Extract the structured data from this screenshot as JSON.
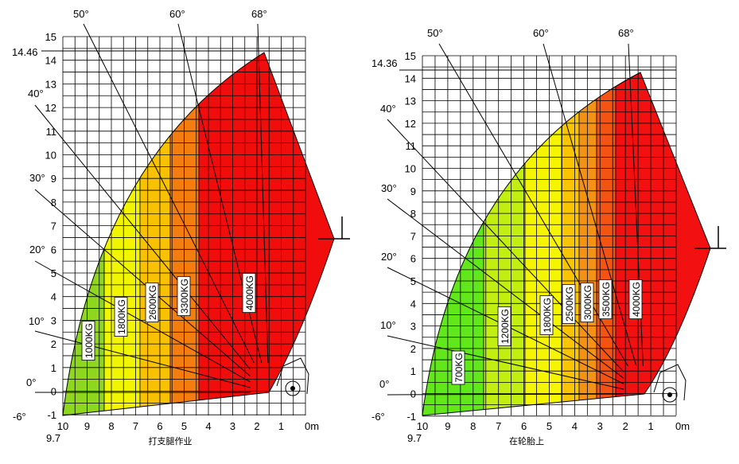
{
  "chart_data": [
    {
      "type": "diagram",
      "title": "打支腿作业",
      "x_axis": {
        "ticks": [
          "10",
          "9",
          "8",
          "7",
          "6",
          "5",
          "4",
          "3",
          "2",
          "1",
          "0m"
        ],
        "extra_label": "9.7",
        "range": [
          10,
          0
        ]
      },
      "y_axis": {
        "ticks": [
          "-1",
          "0",
          "1",
          "2",
          "3",
          "4",
          "5",
          "6",
          "7",
          "8",
          "9",
          "10",
          "11",
          "12",
          "13",
          "14",
          "15"
        ],
        "extra_labels": [
          "14.46",
          "-6°"
        ],
        "range": [
          -1,
          15
        ]
      },
      "max_height_m": 14.46,
      "max_reach_m": 9.7,
      "boom_angles": [
        "50°",
        "60°",
        "68°",
        "40°",
        "30°",
        "20°",
        "10°",
        "0°"
      ],
      "load_zones": [
        {
          "label": "1000KG",
          "color": "#8fd61f"
        },
        {
          "label": "1800KG",
          "color": "#f2f500"
        },
        {
          "label": "2600KG",
          "color": "#f9c200"
        },
        {
          "label": "3300KG",
          "color": "#f47d10"
        },
        {
          "label": "4000KG",
          "color": "#f20d0d"
        }
      ]
    },
    {
      "type": "diagram",
      "title": "在轮胎上",
      "x_axis": {
        "ticks": [
          "10",
          "9",
          "8",
          "7",
          "6",
          "5",
          "4",
          "3",
          "2",
          "1",
          "0m"
        ],
        "extra_label": "9.7",
        "range": [
          10,
          0
        ]
      },
      "y_axis": {
        "ticks": [
          "-1",
          "0",
          "1",
          "2",
          "3",
          "4",
          "5",
          "6",
          "7",
          "8",
          "9",
          "10",
          "11",
          "12",
          "13",
          "14",
          "15"
        ],
        "extra_labels": [
          "14.36",
          "-6°"
        ],
        "range": [
          -1,
          15
        ]
      },
      "max_height_m": 14.36,
      "max_reach_m": 9.7,
      "boom_angles": [
        "50°",
        "60°",
        "68°",
        "40°",
        "30°",
        "20°",
        "10°",
        "0°"
      ],
      "load_zones": [
        {
          "label": "700KG",
          "color": "#62e81a"
        },
        {
          "label": "1200KG",
          "color": "#c2ef10"
        },
        {
          "label": "1800KG",
          "color": "#f6f500"
        },
        {
          "label": "2500KG",
          "color": "#f9c400"
        },
        {
          "label": "3000KG",
          "color": "#f49214"
        },
        {
          "label": "3500KG",
          "color": "#f35412"
        },
        {
          "label": "4000KG",
          "color": "#f21010"
        }
      ]
    }
  ]
}
